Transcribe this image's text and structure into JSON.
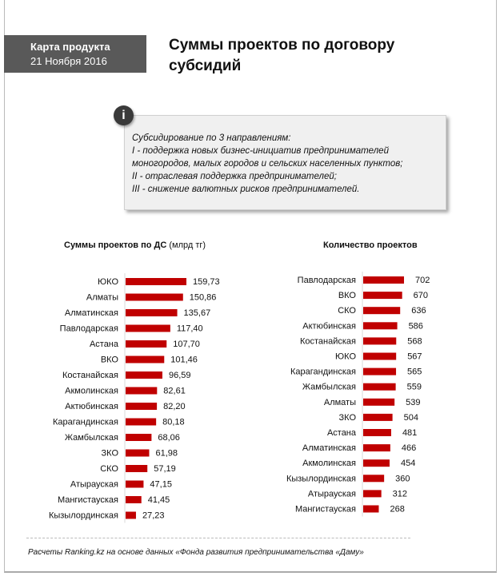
{
  "header": {
    "product_label": "Карта продукта",
    "date": "21 Ноября 2016"
  },
  "title": "Суммы проектов по договору субсидий",
  "info": {
    "icon": "info-icon",
    "lines": [
      "Субсидирование по 3 направлениям:",
      "I - поддержка новых бизнес-инициатив предпринимателей",
      "моногородов, малых городов и сельских населенных пунктов;",
      "II - отраслевая поддержка предпринимателей;",
      "III - снижение валютных рисков предпринимателей."
    ]
  },
  "chart_data": [
    {
      "type": "bar",
      "orientation": "horizontal",
      "title": "Суммы проектов по ДС",
      "unit": "(млрд тг)",
      "bar_color": "#c00000",
      "categories": [
        "ЮКО",
        "Алматы",
        "Алматинская",
        "Павлодарская",
        "Астана",
        "ВКО",
        "Костанайская",
        "Акмолинская",
        "Актюбинская",
        "Карагандинская",
        "Жамбылская",
        "ЗКО",
        "СКО",
        "Атырауская",
        "Мангистауская",
        "Кызылординская"
      ],
      "values": [
        159.73,
        150.86,
        135.67,
        117.4,
        107.7,
        101.46,
        96.59,
        82.61,
        82.2,
        80.18,
        68.06,
        61.98,
        57.19,
        47.15,
        41.45,
        27.23
      ],
      "labels": [
        "159,73",
        "150,86",
        "135,67",
        "117,40",
        "107,70",
        "101,46",
        "96,59",
        "82,61",
        "82,20",
        "80,18",
        "68,06",
        "61,98",
        "57,19",
        "47,15",
        "41,45",
        "27,23"
      ]
    },
    {
      "type": "bar",
      "orientation": "horizontal",
      "title": "Количество проектов",
      "bar_color": "#c00000",
      "categories": [
        "Павлодарская",
        "ВКО",
        "СКО",
        "Актюбинская",
        "Костанайская",
        "ЮКО",
        "Карагандинская",
        "Жамбылская",
        "Алматы",
        "ЗКО",
        "Астана",
        "Алматинская",
        "Акмолинская",
        "Кызылординская",
        "Атырауская",
        "Мангистауская"
      ],
      "values": [
        702,
        670,
        636,
        586,
        568,
        567,
        565,
        559,
        539,
        504,
        481,
        466,
        454,
        360,
        312,
        268
      ],
      "labels": [
        "702",
        "670",
        "636",
        "586",
        "568",
        "567",
        "565",
        "559",
        "539",
        "504",
        "481",
        "466",
        "454",
        "360",
        "312",
        "268"
      ]
    }
  ],
  "footer": "Расчеты Ranking.kz на основе данных «Фонда развития предпринимательства «Даму»"
}
